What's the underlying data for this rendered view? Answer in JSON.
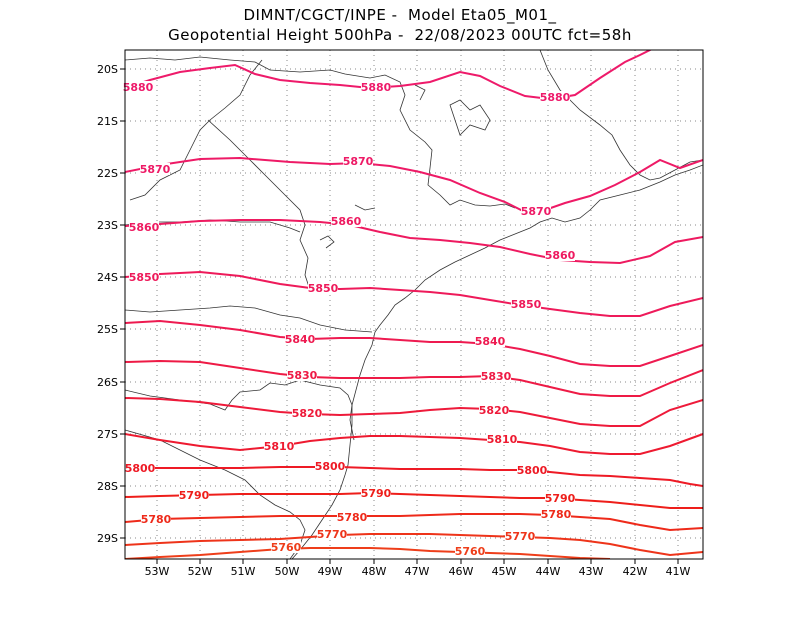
{
  "header": {
    "line1": "DIMNT/CGCT/INPE -  Model Eta05_M01_",
    "line2": "Geopotential Height 500hPa -  22/08/2023 00UTC fct=58h"
  },
  "axes": {
    "lon_labels": [
      "53W",
      "52W",
      "51W",
      "50W",
      "49W",
      "48W",
      "47W",
      "46W",
      "45W",
      "44W",
      "43W",
      "42W",
      "41W"
    ],
    "lat_labels": [
      "20S",
      "21S",
      "22S",
      "23S",
      "24S",
      "25S",
      "26S",
      "27S",
      "28S",
      "29S"
    ]
  },
  "contours": [
    {
      "value": 5880,
      "color": "#ee1a6a",
      "labels": [
        "5880",
        "5880",
        "5880"
      ]
    },
    {
      "value": 5870,
      "color": "#ee1a66",
      "labels": [
        "5870",
        "5870",
        "5870"
      ]
    },
    {
      "value": 5860,
      "color": "#ee1a60",
      "labels": [
        "5860",
        "5860",
        "5860"
      ]
    },
    {
      "value": 5850,
      "color": "#ee1a5a",
      "labels": [
        "5850",
        "5850",
        "5850"
      ]
    },
    {
      "value": 5840,
      "color": "#ee1a50",
      "labels": [
        "5840",
        "5840"
      ]
    },
    {
      "value": 5830,
      "color": "#ee1a45",
      "labels": [
        "5830",
        "5830"
      ]
    },
    {
      "value": 5820,
      "color": "#ee1a3a",
      "labels": [
        "5820",
        "5820"
      ]
    },
    {
      "value": 5810,
      "color": "#ee1a30",
      "labels": [
        "5810",
        "5810"
      ]
    },
    {
      "value": 5800,
      "color": "#ee1a25",
      "labels": [
        "5800",
        "5800",
        "5800"
      ]
    },
    {
      "value": 5790,
      "color": "#ee1e1a",
      "labels": [
        "5790",
        "5790",
        "5790"
      ]
    },
    {
      "value": 5780,
      "color": "#ee2a1a",
      "labels": [
        "5780",
        "5780",
        "5780"
      ]
    },
    {
      "value": 5770,
      "color": "#ee341a",
      "labels": [
        "5770",
        "5770"
      ]
    },
    {
      "value": 5760,
      "color": "#ee3e1a",
      "labels": [
        "5760",
        "5760"
      ]
    }
  ]
}
